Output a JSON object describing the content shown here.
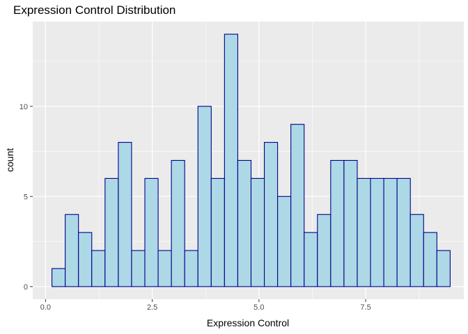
{
  "chart_data": {
    "type": "bar",
    "title": "Expression Control Distribution",
    "xlabel": "Expression Control",
    "ylabel": "count",
    "xlim": [
      -0.3,
      9.8
    ],
    "ylim": [
      -0.7,
      14.7
    ],
    "x_ticks": [
      0,
      2.5,
      5,
      7.5
    ],
    "x_tick_labels": [
      "0.0",
      "2.5",
      "5.0",
      "7.5"
    ],
    "y_ticks": [
      0,
      5,
      10
    ],
    "y_tick_labels": [
      "0",
      "5",
      "10"
    ],
    "grid": true,
    "bin_width": 0.311,
    "bins_start": 0.15,
    "values": [
      1,
      4,
      3,
      2,
      6,
      8,
      2,
      6,
      2,
      7,
      2,
      10,
      6,
      14,
      7,
      6,
      8,
      5,
      9,
      3,
      4,
      7,
      7,
      6,
      6,
      6,
      6,
      4,
      3,
      2
    ],
    "colors": {
      "panel": "#ebebeb",
      "grid_major": "#ffffff",
      "bar_fill": "#add8e6",
      "bar_stroke": "#00008b",
      "tick": "#333333"
    }
  }
}
